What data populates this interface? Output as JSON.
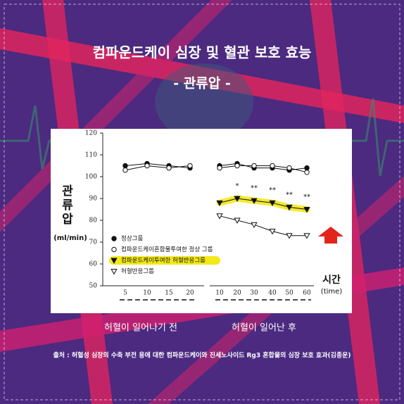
{
  "chart_data": {
    "type": "line",
    "title": "컴파운드케이 심장 및 혈관 보호 효능",
    "subtitle": "- 관류압 -",
    "y_label": "관류압",
    "y_unit": "(ml/min)",
    "x_label": "시간",
    "x_unit": "(time)",
    "period_labels": [
      "허혈이 일어나기 전",
      "허혈이 일어난 후"
    ],
    "source": "출처 : 허혈성 심장의 수축 부전 용에 대한 컴파운드케이와 진세노사이드 Rg3 혼합물의 심장 보호 효과(김종운)",
    "categories": [
      "5",
      "10",
      "15",
      "20",
      null,
      "10",
      "20",
      "30",
      "40",
      "50",
      "60"
    ],
    "significance_labels": [
      null,
      null,
      null,
      null,
      null,
      null,
      "*",
      "**",
      "**",
      "**",
      "**"
    ],
    "ylim": [
      50,
      120
    ],
    "yticks": [
      50,
      60,
      70,
      80,
      90,
      100,
      110,
      120
    ],
    "series": [
      {
        "name": "정상그룹",
        "color": "#111111",
        "marker": "circle-filled",
        "values": [
          105,
          106,
          105,
          104,
          null,
          105,
          106,
          104,
          104,
          103,
          104
        ]
      },
      {
        "name": "컴파운드케이혼합물투여한 정상 그룹",
        "color": "#111111",
        "marker": "circle-open",
        "values": [
          103,
          105,
          104,
          105,
          null,
          104,
          105,
          105,
          105,
          104,
          102
        ]
      },
      {
        "name": "컴파운드케이투여한 허혈반응그룹",
        "color": "#111111",
        "marker": "triangle-filled",
        "highlight": "#f3e81a",
        "values": [
          null,
          null,
          null,
          null,
          null,
          88,
          90,
          89,
          88,
          86,
          85
        ]
      },
      {
        "name": "허혈반응그룹",
        "color": "#111111",
        "marker": "triangle-open",
        "values": [
          null,
          null,
          null,
          null,
          null,
          82,
          80,
          78,
          75,
          73,
          73
        ]
      }
    ]
  }
}
